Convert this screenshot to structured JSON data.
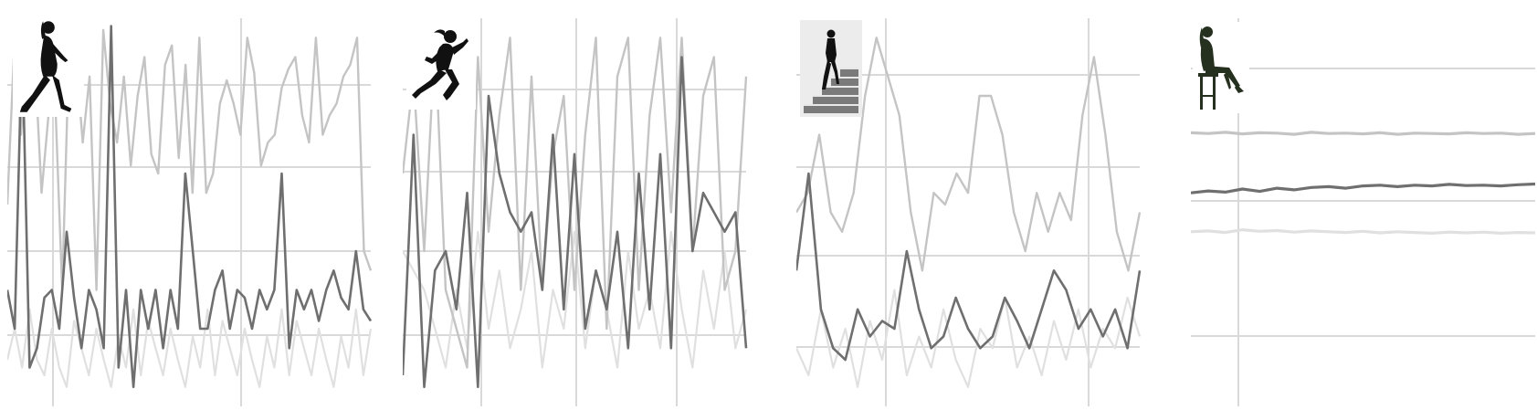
{
  "colors": {
    "background": "#ffffff",
    "grid": "#d9d9d9",
    "series": [
      "#c4c4c4",
      "#6f6f6f",
      "#e0e0e0"
    ]
  },
  "chart_data": [
    {
      "type": "line",
      "activity_icon": "walking-person-icon",
      "grid": true,
      "ylim": [
        0,
        100
      ],
      "series": [
        {
          "values": [
            52,
            92,
            70,
            95,
            90,
            55,
            75,
            78,
            30,
            92,
            90,
            68,
            85,
            30,
            97,
            78,
            68,
            85,
            62,
            80,
            90,
            65,
            60,
            88,
            93,
            64,
            88,
            55,
            95,
            55,
            60,
            78,
            84,
            78,
            70,
            95,
            86,
            62,
            68,
            70,
            82,
            87,
            90,
            75,
            68,
            95,
            70,
            75,
            78,
            85,
            88,
            95,
            40,
            35
          ]
        },
        {
          "values": [
            30,
            20,
            95,
            10,
            15,
            28,
            30,
            20,
            45,
            28,
            15,
            30,
            25,
            15,
            98,
            10,
            30,
            5,
            30,
            20,
            30,
            15,
            30,
            20,
            60,
            40,
            20,
            20,
            30,
            35,
            20,
            30,
            28,
            20,
            30,
            25,
            30,
            60,
            15,
            30,
            25,
            30,
            22,
            30,
            35,
            28,
            25,
            40,
            25,
            22
          ]
        },
        {
          "values": [
            12,
            20,
            10,
            25,
            12,
            8,
            20,
            10,
            5,
            22,
            15,
            8,
            20,
            12,
            5,
            18,
            10,
            25,
            8,
            22,
            15,
            8,
            20,
            12,
            5,
            18,
            10,
            25,
            8,
            22,
            15,
            8,
            20,
            12,
            5,
            18,
            10,
            25,
            8,
            22,
            15,
            8,
            20,
            12,
            5,
            18,
            10,
            25,
            8,
            20
          ]
        }
      ]
    },
    {
      "type": "line",
      "activity_icon": "running-person-icon",
      "grid": true,
      "ylim": [
        0,
        100
      ],
      "series": [
        {
          "values": [
            60,
            85,
            40,
            95,
            30,
            20,
            10,
            90,
            45,
            75,
            95,
            30,
            85,
            30,
            65,
            80,
            30,
            70,
            95,
            20,
            85,
            95,
            30,
            75,
            95,
            50,
            95,
            40,
            80,
            90,
            30,
            40,
            85
          ]
        },
        {
          "values": [
            8,
            70,
            5,
            35,
            40,
            25,
            55,
            5,
            80,
            60,
            50,
            45,
            50,
            30,
            70,
            25,
            65,
            20,
            35,
            25,
            45,
            15,
            60,
            25,
            65,
            15,
            90,
            40,
            55,
            50,
            45,
            50,
            15
          ]
        },
        {
          "values": [
            40,
            35,
            30,
            20,
            10,
            30,
            15,
            45,
            20,
            35,
            15,
            25,
            40,
            10,
            30,
            20,
            45,
            15,
            35,
            25,
            10,
            40,
            20,
            30,
            15,
            45,
            25,
            10,
            35,
            20,
            40,
            15,
            25
          ]
        }
      ]
    },
    {
      "type": "line",
      "activity_icon": "stairs-person-icon",
      "grid": true,
      "ylim": [
        0,
        100
      ],
      "series": [
        {
          "values": [
            50,
            55,
            70,
            50,
            45,
            55,
            80,
            95,
            85,
            75,
            50,
            35,
            55,
            52,
            60,
            55,
            80,
            80,
            70,
            50,
            40,
            55,
            45,
            55,
            48,
            75,
            90,
            70,
            45,
            35,
            50
          ]
        },
        {
          "values": [
            35,
            60,
            25,
            15,
            12,
            25,
            18,
            22,
            20,
            40,
            25,
            15,
            18,
            28,
            20,
            15,
            18,
            28,
            22,
            15,
            25,
            35,
            30,
            20,
            25,
            18,
            25,
            15,
            35
          ]
        },
        {
          "values": [
            15,
            8,
            25,
            10,
            20,
            5,
            22,
            12,
            30,
            8,
            18,
            10,
            25,
            12,
            5,
            20,
            15,
            28,
            10,
            18,
            8,
            22,
            12,
            25,
            10,
            20,
            15,
            28,
            18
          ]
        }
      ]
    },
    {
      "type": "line",
      "activity_icon": "sitting-person-icon",
      "grid": true,
      "ylim": [
        0,
        100
      ],
      "series": [
        {
          "values": [
            70.5,
            70.3,
            70.6,
            70.2,
            70.5,
            70.4,
            70.1,
            70.6,
            70.3,
            70.4,
            70.2,
            70.5,
            70.1,
            70.4,
            70.3,
            70.2,
            70.5,
            70.3,
            70.4,
            70.1,
            70.3
          ]
        },
        {
          "values": [
            55,
            55.5,
            55.2,
            56,
            55.4,
            56.2,
            55.8,
            56.4,
            56.6,
            56.2,
            56.8,
            57,
            56.6,
            57,
            56.8,
            57.2,
            56.9,
            57,
            56.8,
            57.1,
            57.3
          ]
        },
        {
          "values": [
            45,
            45.2,
            44.8,
            45.5,
            45.1,
            45.3,
            44.9,
            45.2,
            45,
            44.8,
            45.1,
            44.7,
            45,
            44.8,
            44.6,
            44.9,
            44.7,
            44.9,
            44.6,
            44.8,
            44.7
          ]
        }
      ]
    }
  ]
}
